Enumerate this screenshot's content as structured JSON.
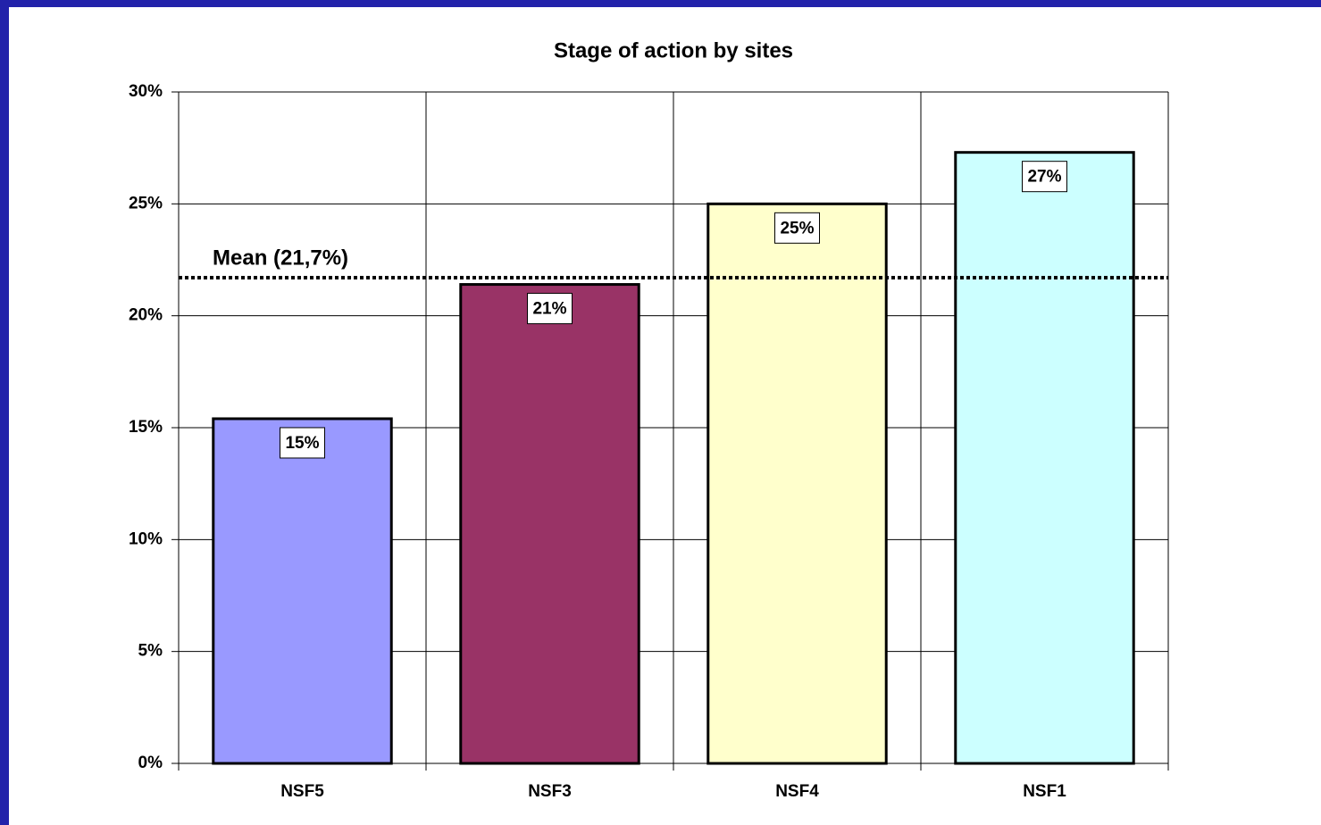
{
  "chart_data": {
    "type": "bar",
    "title": "Stage of action by sites",
    "categories": [
      "NSF5",
      "NSF3",
      "NSF4",
      "NSF1"
    ],
    "values": [
      15.4,
      21.4,
      25.0,
      27.3
    ],
    "value_labels": [
      "15%",
      "21%",
      "25%",
      "27%"
    ],
    "colors": [
      "#9999ff",
      "#993366",
      "#ffffcc",
      "#ccffff"
    ],
    "ylim": [
      0,
      30
    ],
    "yticks": [
      {
        "value": 0,
        "label": "0%"
      },
      {
        "value": 5,
        "label": "5%"
      },
      {
        "value": 10,
        "label": "10%"
      },
      {
        "value": 15,
        "label": "15%"
      },
      {
        "value": 20,
        "label": "20%"
      },
      {
        "value": 25,
        "label": "25%"
      },
      {
        "value": 30,
        "label": "30%"
      }
    ],
    "grid": true,
    "mean_line": {
      "value": 21.7,
      "label": "Mean (21,7%)"
    }
  }
}
